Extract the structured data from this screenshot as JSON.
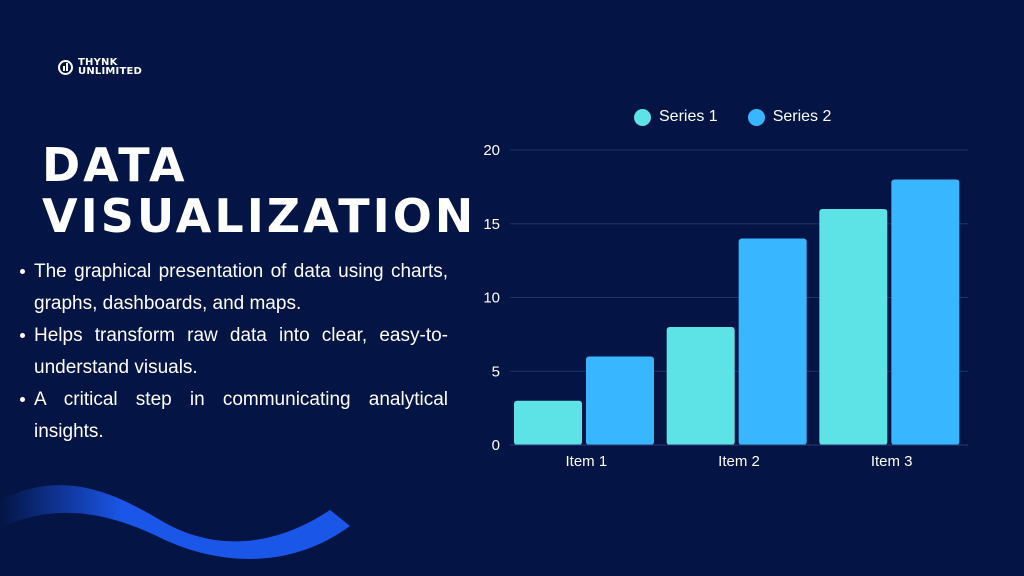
{
  "brand": {
    "line1": "THYNK",
    "line2": "UNLIMITED"
  },
  "title": {
    "line1": "DATA",
    "line2": "VISUALIZATION"
  },
  "bullets": [
    "The graphical presentation of data using charts, graphs, dashboards, and maps.",
    "Helps transform raw data into clear, easy-to-understand visuals.",
    "A critical step in communicating analytical insights."
  ],
  "colors": {
    "background": "#041444",
    "series1": "#5DE3E6",
    "series2": "#38B6FF",
    "wave": "#1A56E8"
  },
  "chart_data": {
    "type": "bar",
    "categories": [
      "Item 1",
      "Item 2",
      "Item 3"
    ],
    "series": [
      {
        "name": "Series 1",
        "values": [
          3,
          8,
          16
        ]
      },
      {
        "name": "Series 2",
        "values": [
          6,
          14,
          18
        ]
      }
    ],
    "yticks": [
      "0",
      "5",
      "10",
      "15",
      "20"
    ],
    "ylim": [
      0,
      20
    ],
    "grid": true,
    "legend_position": "top"
  }
}
